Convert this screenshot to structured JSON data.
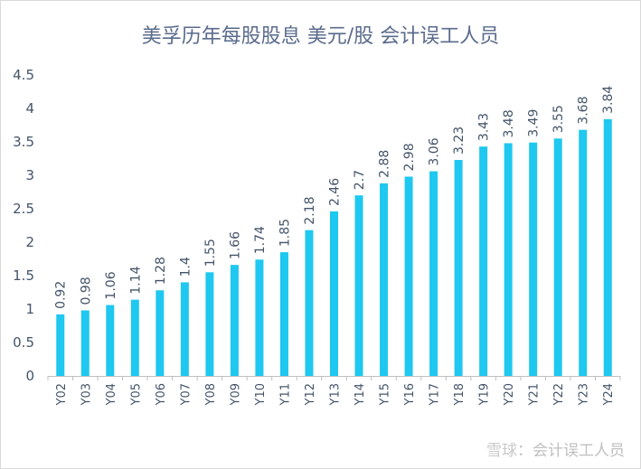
{
  "chart_data": {
    "type": "bar",
    "title": "美孚历年每股股息 美元/股 会计误工人员",
    "xlabel": "",
    "ylabel": "",
    "ylim": [
      0,
      4.5
    ],
    "yticks": [
      "0",
      "0.5",
      "1",
      "1.5",
      "2",
      "2.5",
      "3",
      "3.5",
      "4",
      "4.5"
    ],
    "grid": false,
    "legend": "none",
    "categories": [
      "Y02",
      "Y03",
      "Y04",
      "Y05",
      "Y06",
      "Y07",
      "Y08",
      "Y09",
      "Y10",
      "Y11",
      "Y12",
      "Y13",
      "Y14",
      "Y15",
      "Y16",
      "Y17",
      "Y18",
      "Y19",
      "Y20",
      "Y21",
      "Y22",
      "Y23",
      "Y24"
    ],
    "values": [
      0.92,
      0.98,
      1.06,
      1.14,
      1.28,
      1.4,
      1.55,
      1.66,
      1.74,
      1.85,
      2.18,
      2.46,
      2.7,
      2.88,
      2.98,
      3.06,
      3.23,
      3.43,
      3.48,
      3.49,
      3.55,
      3.68,
      3.84
    ],
    "value_labels": [
      "0.92",
      "0.98",
      "1.06",
      "1.14",
      "1.28",
      "1.4",
      "1.55",
      "1.66",
      "1.74",
      "1.85",
      "2.18",
      "2.46",
      "2.7",
      "2.88",
      "2.98",
      "3.06",
      "3.23",
      "3.43",
      "3.48",
      "3.49",
      "3.55",
      "3.68",
      "3.84"
    ],
    "bar_color": "#1ec8f0",
    "axis_color": "#bfbfbf",
    "text_color": "#44546a"
  },
  "watermark": {
    "brand": "雪球",
    "text": "：会计误工人员"
  }
}
